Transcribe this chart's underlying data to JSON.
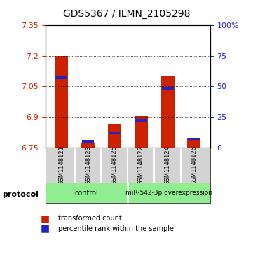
{
  "title": "GDS5367 / ILMN_2105298",
  "samples": [
    "GSM1148121",
    "GSM1148123",
    "GSM1148125",
    "GSM1148122",
    "GSM1148124",
    "GSM1148126"
  ],
  "red_values": [
    7.2,
    6.77,
    6.865,
    6.905,
    7.1,
    6.795
  ],
  "blue_percentiles": [
    57,
    5,
    12,
    22,
    48,
    7
  ],
  "ymin": 6.75,
  "ymax": 7.35,
  "yticks": [
    7.35,
    7.2,
    7.05,
    6.9,
    6.75
  ],
  "right_yticks": [
    100,
    75,
    50,
    25,
    0
  ],
  "groups": [
    {
      "label": "control",
      "start": 0,
      "end": 3,
      "color": "#90EE90"
    },
    {
      "label": "miR-542-3p overexpression",
      "start": 3,
      "end": 6,
      "color": "#90EE90"
    }
  ],
  "protocol_label": "protocol",
  "legend_red_label": "transformed count",
  "legend_blue_label": "percentile rank within the sample",
  "bar_color": "#CC2200",
  "blue_color": "#2222CC",
  "bar_width": 0.5,
  "background_color": "#ffffff",
  "plot_bg": "#ffffff"
}
